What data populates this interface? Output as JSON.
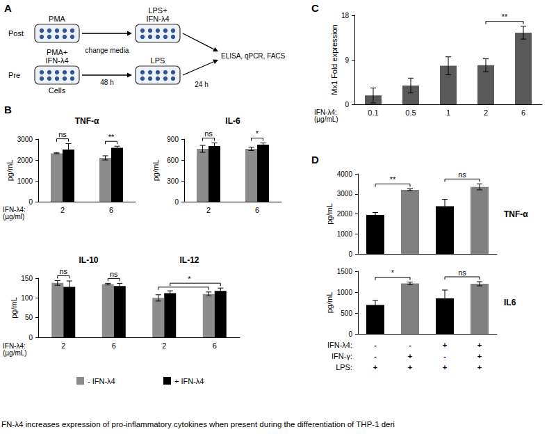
{
  "diagram": {
    "panel": "A",
    "rows": [
      {
        "label": "Post",
        "steps": [
          [
            "PMA"
          ],
          [
            "LPS+",
            "IFN-λ4"
          ]
        ]
      },
      {
        "label": "Pre",
        "steps": [
          [
            "PMA+",
            "IFN-λ4"
          ],
          [
            "LPS"
          ]
        ]
      }
    ],
    "sample": "Cells",
    "intervals": [
      "48 h",
      "24 h"
    ],
    "transition": "change media",
    "readout": "ELISA, qPCR, FACS"
  },
  "chart_data": [
    {
      "panel": "B",
      "type": "bar",
      "title": "TNF-α",
      "ylabel": "pg/mL",
      "xlabel": "IFN-λ4:\n(µg/ml)",
      "categories": [
        "2",
        "6"
      ],
      "series": [
        {
          "name": "- IFN-λ4",
          "color": "#8c8c8c",
          "values": [
            2320,
            2100
          ],
          "errors": [
            20,
            100
          ]
        },
        {
          "name": "+ IFN-λ4",
          "color": "#000000",
          "values": [
            2500,
            2580
          ],
          "errors": [
            280,
            80
          ]
        }
      ],
      "ylim": [
        0,
        3000
      ],
      "yticks": [
        0,
        1000,
        2000,
        3000
      ],
      "annotations": [
        {
          "text": "ns",
          "category": "2"
        },
        {
          "text": "**",
          "category": "6"
        }
      ]
    },
    {
      "panel": "B",
      "type": "bar",
      "title": "IL-6",
      "ylabel": "pg/mL",
      "categories": [
        "2",
        "6"
      ],
      "series": [
        {
          "name": "- IFN-λ4",
          "color": "#8c8c8c",
          "values": [
            760,
            760
          ],
          "errors": [
            50,
            25
          ]
        },
        {
          "name": "+ IFN-λ4",
          "color": "#000000",
          "values": [
            800,
            820
          ],
          "errors": [
            45,
            25
          ]
        }
      ],
      "ylim": [
        0,
        900
      ],
      "yticks": [
        0,
        300,
        600,
        900
      ],
      "annotations": [
        {
          "text": "ns",
          "category": "2"
        },
        {
          "text": "*",
          "category": "6"
        }
      ]
    },
    {
      "panel": "B",
      "type": "bar",
      "title": "IL-10",
      "ylabel": "pg/mL",
      "xlabel": "IFN-λ4:\n(µg/mL)",
      "categories": [
        "2",
        "6"
      ],
      "series": [
        {
          "name": "- IFN-λ4",
          "color": "#8c8c8c",
          "values": [
            138,
            135
          ],
          "errors": [
            6,
            2
          ]
        },
        {
          "name": "+ IFN-λ4",
          "color": "#000000",
          "values": [
            128,
            130
          ],
          "errors": [
            15,
            7
          ]
        }
      ],
      "ylim": [
        0,
        150
      ],
      "yticks": [
        0,
        50,
        100,
        150
      ],
      "annotations": [
        {
          "text": "ns",
          "category": "2"
        },
        {
          "text": "ns",
          "category": "6"
        }
      ]
    },
    {
      "panel": "B",
      "type": "bar",
      "title": "IL-12",
      "tick_labels": "x",
      "legend": "bottom",
      "categories": [
        "2",
        "6"
      ],
      "series": [
        {
          "name": "- IFN-λ4",
          "color": "#8c8c8c",
          "values": [
            100,
            110
          ],
          "errors": [
            8,
            5
          ]
        },
        {
          "name": "+ IFN-λ4",
          "color": "#000000",
          "values": [
            112,
            118
          ],
          "errors": [
            6,
            7
          ]
        }
      ],
      "ylim": [
        0,
        150
      ],
      "yticks": [
        0,
        50,
        100,
        150
      ],
      "annotations": [
        {
          "text": "*",
          "between_categories": [
            "2",
            "6"
          ]
        }
      ]
    },
    {
      "panel": "C",
      "type": "bar",
      "ylabel": "Mx1 Fold expression",
      "xlabel": "IFN-λ4:\n(µg/mL)",
      "categories": [
        "0.1",
        "0.5",
        "1",
        "2",
        "6"
      ],
      "values": [
        1.8,
        3.8,
        7.8,
        7.9,
        14.5
      ],
      "errors": [
        1.5,
        1.5,
        1.8,
        1.3,
        1.3
      ],
      "color": "#595959",
      "ylim": [
        0,
        18
      ],
      "yticks": [
        0,
        9,
        18
      ],
      "annotations": [
        {
          "text": "**",
          "between": [
            3,
            4
          ]
        }
      ]
    },
    {
      "panel": "D",
      "type": "bar",
      "title": "TNF-α",
      "ylabel": "pg/mL",
      "categories": [
        null,
        null,
        null,
        null
      ],
      "values": [
        1950,
        3200,
        2380,
        3350
      ],
      "errors": [
        120,
        50,
        350,
        150
      ],
      "colors": [
        "#000000",
        "#808080",
        "#000000",
        "#808080"
      ],
      "ylim": [
        0,
        4000
      ],
      "yticks": [
        0,
        1000,
        2000,
        3000,
        4000
      ],
      "annotations": [
        {
          "text": "**",
          "between": [
            0,
            1
          ]
        },
        {
          "text": "ns",
          "between": [
            2,
            3
          ]
        }
      ]
    },
    {
      "panel": "D",
      "type": "bar",
      "title": "IL6",
      "ylabel": "pg/mL",
      "categories": [
        null,
        null,
        null,
        null
      ],
      "values": [
        690,
        1210,
        850,
        1200
      ],
      "errors": [
        110,
        30,
        200,
        50
      ],
      "colors": [
        "#000000",
        "#808080",
        "#000000",
        "#808080"
      ],
      "ylim": [
        0,
        1500
      ],
      "yticks": [
        0,
        500,
        1000,
        1500
      ],
      "annotations": [
        {
          "text": "*",
          "between": [
            0,
            1
          ]
        },
        {
          "text": "ns",
          "between": [
            2,
            3
          ]
        }
      ],
      "conditions": [
        {
          "label": "IFN-λ4:",
          "values": [
            "-",
            "-",
            "+",
            "+"
          ]
        },
        {
          "label": "IFN-γ:",
          "values": [
            "-",
            "+",
            "-",
            "+"
          ]
        },
        {
          "label": "LPS:",
          "values": [
            "+",
            "+",
            "+",
            "+"
          ]
        }
      ]
    }
  ],
  "caption": "FN-λ4 increases expression of pro-inflammatory cytokines when present during the differentiation of THP-1 deri"
}
